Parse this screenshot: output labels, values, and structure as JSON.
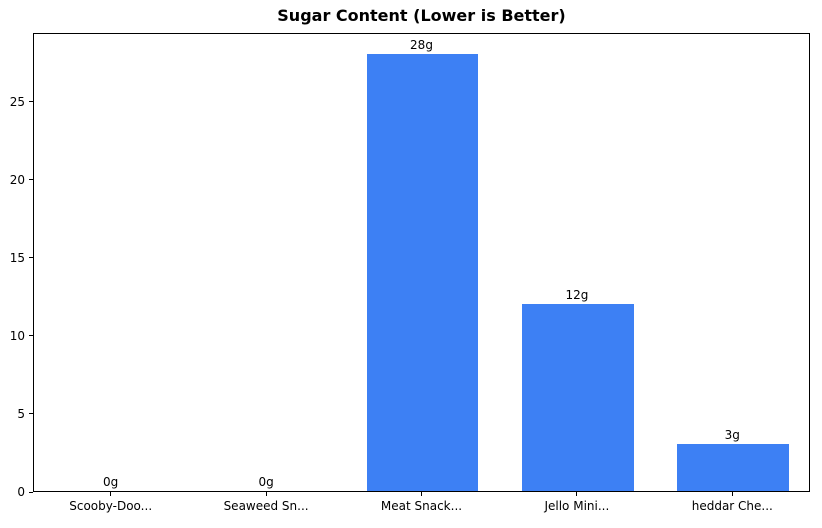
{
  "figure": {
    "background": "#ffffff"
  },
  "chart_data": {
    "type": "bar",
    "title": "Sugar Content (Lower is Better)",
    "categories": [
      "Scooby-Doo...",
      "Seaweed Sn...",
      "Meat Snack...",
      "Jello Mini...",
      "heddar Che..."
    ],
    "values": [
      0,
      0,
      28,
      12,
      3
    ],
    "bar_labels": [
      "0g",
      "0g",
      "28g",
      "12g",
      "3g"
    ],
    "yticks": [
      0,
      5,
      10,
      15,
      20,
      25
    ],
    "ylim": [
      0,
      29.4
    ],
    "xlabel": "",
    "ylabel": "",
    "bar_color": "#3d80f4",
    "axis_color": "#000000",
    "text_color": "#000000",
    "grid": false,
    "legend": "none",
    "bar_width_fraction": 0.72
  }
}
